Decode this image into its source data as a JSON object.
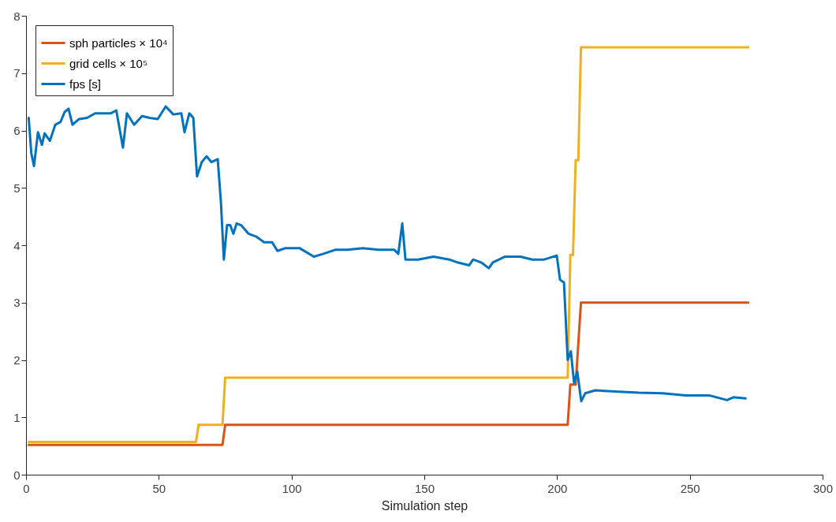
{
  "chart_data": {
    "type": "line",
    "xlabel": "Simulation step",
    "xlim": [
      0,
      300
    ],
    "xticks": [
      0,
      50,
      100,
      150,
      200,
      250,
      300
    ],
    "ylim": [
      0,
      8
    ],
    "yticks": [
      0,
      1,
      2,
      3,
      4,
      5,
      6,
      7,
      8
    ],
    "grid": false,
    "legend": "top left",
    "line_style": "solid",
    "marker": "none",
    "series": [
      {
        "name": "sph particles × 10⁴",
        "color": "#d95319",
        "x": [
          1,
          74,
          75,
          204,
          205,
          207,
          209,
          272
        ],
        "values": [
          0.52,
          0.52,
          0.87,
          0.87,
          1.57,
          1.57,
          3.0,
          3.0
        ]
      },
      {
        "name": "grid cells × 10⁵",
        "color": "#edb120",
        "x": [
          1,
          64,
          65,
          74,
          75,
          204,
          205,
          206,
          207,
          208,
          209,
          272
        ],
        "values": [
          0.57,
          0.57,
          0.87,
          0.87,
          1.69,
          1.69,
          3.83,
          3.83,
          5.48,
          5.48,
          7.45,
          7.45
        ]
      },
      {
        "name": "fps [s]",
        "color": "#0072bd",
        "x": [
          1,
          2,
          3,
          4.5,
          6,
          7,
          9,
          11,
          13,
          14.5,
          16,
          17.5,
          20,
          23,
          26,
          29,
          32,
          34,
          36.5,
          38,
          40.7,
          43.7,
          46.6,
          49.6,
          52.6,
          55.5,
          58.5,
          59.7,
          61.5,
          63,
          64.4,
          66.2,
          68,
          69.8,
          72.2,
          73.4,
          74.5,
          75.7,
          76.9,
          78.1,
          79.3,
          81,
          83.8,
          86.7,
          89.7,
          92.7,
          94.7,
          97.7,
          100,
          103,
          108.4,
          112,
          116.4,
          121,
          126.8,
          132.8,
          138.7,
          140.2,
          141.7,
          142.9,
          147.6,
          153.5,
          159.5,
          162.5,
          166.9,
          168.4,
          171.4,
          174.3,
          175.8,
          180.3,
          186.2,
          190.7,
          195.1,
          199.9,
          201.1,
          202.6,
          204,
          205.2,
          206.4,
          207.6,
          209.1,
          210.6,
          214.4,
          221.9,
          230.8,
          239.7,
          248.6,
          257.5,
          264,
          266.4,
          271
        ],
        "values": [
          6.22,
          5.6,
          5.38,
          5.97,
          5.75,
          5.95,
          5.82,
          6.1,
          6.15,
          6.32,
          6.38,
          6.1,
          6.2,
          6.22,
          6.3,
          6.3,
          6.3,
          6.35,
          5.7,
          6.3,
          6.1,
          6.25,
          6.22,
          6.2,
          6.42,
          6.28,
          6.3,
          5.97,
          6.3,
          6.22,
          5.2,
          5.45,
          5.55,
          5.45,
          5.5,
          4.75,
          3.75,
          4.35,
          4.35,
          4.2,
          4.38,
          4.35,
          4.2,
          4.15,
          4.05,
          4.05,
          3.9,
          3.95,
          3.95,
          3.95,
          3.8,
          3.85,
          3.92,
          3.92,
          3.95,
          3.92,
          3.92,
          3.85,
          4.38,
          3.75,
          3.75,
          3.8,
          3.75,
          3.7,
          3.65,
          3.75,
          3.7,
          3.6,
          3.7,
          3.8,
          3.8,
          3.75,
          3.75,
          3.82,
          3.4,
          3.35,
          2.0,
          2.15,
          1.6,
          1.8,
          1.28,
          1.42,
          1.47,
          1.45,
          1.43,
          1.42,
          1.38,
          1.38,
          1.3,
          1.35,
          1.33
        ]
      }
    ]
  }
}
